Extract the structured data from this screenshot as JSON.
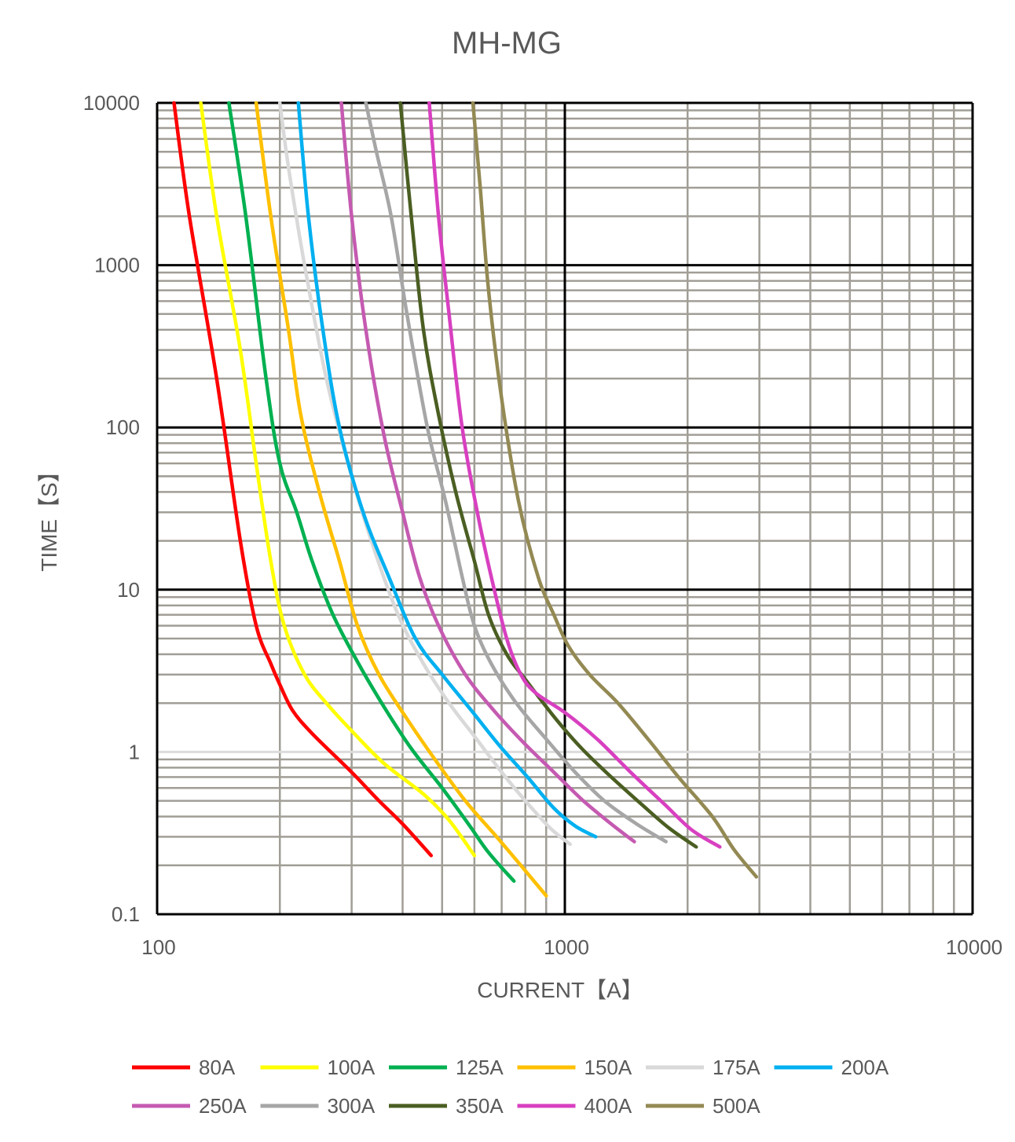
{
  "chart_data": {
    "type": "line",
    "title": "MH-MG",
    "xlabel": "CURRENT【A】",
    "ylabel": "TIME【S】",
    "xscale": "log",
    "yscale": "log",
    "xlim": [
      100,
      10000
    ],
    "ylim": [
      0.1,
      10000
    ],
    "xticks": [
      "100",
      "1000",
      "10000"
    ],
    "yticks": [
      "0.1",
      "1",
      "10",
      "100",
      "1000",
      "10000"
    ],
    "grid": true,
    "legend_position": "bottom",
    "series": [
      {
        "name": "80A",
        "color": "#ff0000",
        "points": [
          [
            110,
            10000
          ],
          [
            120,
            2000
          ],
          [
            140,
            200
          ],
          [
            160,
            20
          ],
          [
            175,
            6
          ],
          [
            190,
            3.5
          ],
          [
            200,
            2.6
          ],
          [
            215,
            1.8
          ],
          [
            240,
            1.3
          ],
          [
            300,
            0.75
          ],
          [
            350,
            0.5
          ],
          [
            400,
            0.36
          ],
          [
            470,
            0.23
          ]
        ]
      },
      {
        "name": "100A",
        "color": "#ffff00",
        "points": [
          [
            128,
            10000
          ],
          [
            140,
            2000
          ],
          [
            160,
            300
          ],
          [
            175,
            60
          ],
          [
            190,
            15
          ],
          [
            205,
            6
          ],
          [
            230,
            3
          ],
          [
            260,
            2
          ],
          [
            300,
            1.35
          ],
          [
            360,
            0.85
          ],
          [
            450,
            0.55
          ],
          [
            520,
            0.38
          ],
          [
            600,
            0.23
          ]
        ]
      },
      {
        "name": "125A",
        "color": "#00b050",
        "points": [
          [
            150,
            10000
          ],
          [
            165,
            2000
          ],
          [
            185,
            200
          ],
          [
            200,
            60
          ],
          [
            220,
            30
          ],
          [
            240,
            15
          ],
          [
            270,
            7
          ],
          [
            310,
            3.6
          ],
          [
            360,
            1.9
          ],
          [
            420,
            1.05
          ],
          [
            500,
            0.6
          ],
          [
            580,
            0.36
          ],
          [
            650,
            0.24
          ],
          [
            750,
            0.16
          ]
        ]
      },
      {
        "name": "150A",
        "color": "#ffc000",
        "points": [
          [
            175,
            10000
          ],
          [
            190,
            2000
          ],
          [
            210,
            400
          ],
          [
            225,
            120
          ],
          [
            250,
            40
          ],
          [
            280,
            15
          ],
          [
            310,
            6
          ],
          [
            350,
            3
          ],
          [
            410,
            1.6
          ],
          [
            480,
            0.9
          ],
          [
            570,
            0.5
          ],
          [
            680,
            0.3
          ],
          [
            780,
            0.2
          ],
          [
            900,
            0.13
          ]
        ]
      },
      {
        "name": "175A",
        "color": "#d9d9d9",
        "points": [
          [
            200,
            10000
          ],
          [
            210,
            4000
          ],
          [
            230,
            1000
          ],
          [
            260,
            200
          ],
          [
            300,
            50
          ],
          [
            340,
            18
          ],
          [
            390,
            7
          ],
          [
            450,
            3.5
          ],
          [
            520,
            2
          ],
          [
            600,
            1.25
          ],
          [
            700,
            0.75
          ],
          [
            800,
            0.5
          ],
          [
            920,
            0.34
          ],
          [
            1030,
            0.27
          ]
        ]
      },
      {
        "name": "200A",
        "color": "#00b0f0",
        "points": [
          [
            222,
            10000
          ],
          [
            235,
            2000
          ],
          [
            255,
            400
          ],
          [
            280,
            100
          ],
          [
            320,
            30
          ],
          [
            370,
            12
          ],
          [
            430,
            5
          ],
          [
            500,
            3
          ],
          [
            590,
            1.8
          ],
          [
            690,
            1.1
          ],
          [
            810,
            0.7
          ],
          [
            940,
            0.45
          ],
          [
            1060,
            0.35
          ],
          [
            1190,
            0.3
          ]
        ]
      },
      {
        "name": "250A",
        "color": "#c55ab1",
        "points": [
          [
            283,
            10000
          ],
          [
            300,
            2000
          ],
          [
            325,
            400
          ],
          [
            360,
            90
          ],
          [
            400,
            30
          ],
          [
            440,
            12
          ],
          [
            490,
            6
          ],
          [
            570,
            3
          ],
          [
            670,
            1.8
          ],
          [
            790,
            1.15
          ],
          [
            940,
            0.75
          ],
          [
            1110,
            0.5
          ],
          [
            1300,
            0.36
          ],
          [
            1480,
            0.28
          ]
        ]
      },
      {
        "name": "300A",
        "color": "#a6a6a6",
        "points": [
          [
            325,
            10000
          ],
          [
            345,
            5000
          ],
          [
            375,
            2000
          ],
          [
            410,
            500
          ],
          [
            460,
            100
          ],
          [
            510,
            35
          ],
          [
            560,
            12
          ],
          [
            600,
            6
          ],
          [
            660,
            3.5
          ],
          [
            760,
            2
          ],
          [
            900,
            1.2
          ],
          [
            1060,
            0.75
          ],
          [
            1250,
            0.5
          ],
          [
            1500,
            0.36
          ],
          [
            1770,
            0.28
          ]
        ]
      },
      {
        "name": "350A",
        "color": "#4b5e22",
        "points": [
          [
            395,
            10000
          ],
          [
            420,
            2000
          ],
          [
            450,
            400
          ],
          [
            490,
            120
          ],
          [
            540,
            40
          ],
          [
            600,
            15
          ],
          [
            650,
            7
          ],
          [
            720,
            4
          ],
          [
            800,
            2.8
          ],
          [
            950,
            1.6
          ],
          [
            1100,
            1.05
          ],
          [
            1300,
            0.7
          ],
          [
            1550,
            0.47
          ],
          [
            1800,
            0.34
          ],
          [
            2100,
            0.26
          ]
        ]
      },
      {
        "name": "400A",
        "color": "#d840c0",
        "points": [
          [
            465,
            10000
          ],
          [
            490,
            2000
          ],
          [
            520,
            500
          ],
          [
            560,
            100
          ],
          [
            610,
            30
          ],
          [
            660,
            12
          ],
          [
            720,
            5
          ],
          [
            780,
            3
          ],
          [
            850,
            2.3
          ],
          [
            1000,
            1.75
          ],
          [
            1200,
            1.2
          ],
          [
            1450,
            0.75
          ],
          [
            1750,
            0.48
          ],
          [
            2050,
            0.33
          ],
          [
            2400,
            0.26
          ]
        ]
      },
      {
        "name": "500A",
        "color": "#938953",
        "points": [
          [
            595,
            10000
          ],
          [
            620,
            3000
          ],
          [
            650,
            700
          ],
          [
            700,
            150
          ],
          [
            770,
            35
          ],
          [
            860,
            12
          ],
          [
            940,
            7
          ],
          [
            1020,
            4.5
          ],
          [
            1150,
            3
          ],
          [
            1350,
            2
          ],
          [
            1600,
            1.2
          ],
          [
            1900,
            0.7
          ],
          [
            2300,
            0.4
          ],
          [
            2600,
            0.25
          ],
          [
            2950,
            0.17
          ]
        ]
      }
    ]
  }
}
